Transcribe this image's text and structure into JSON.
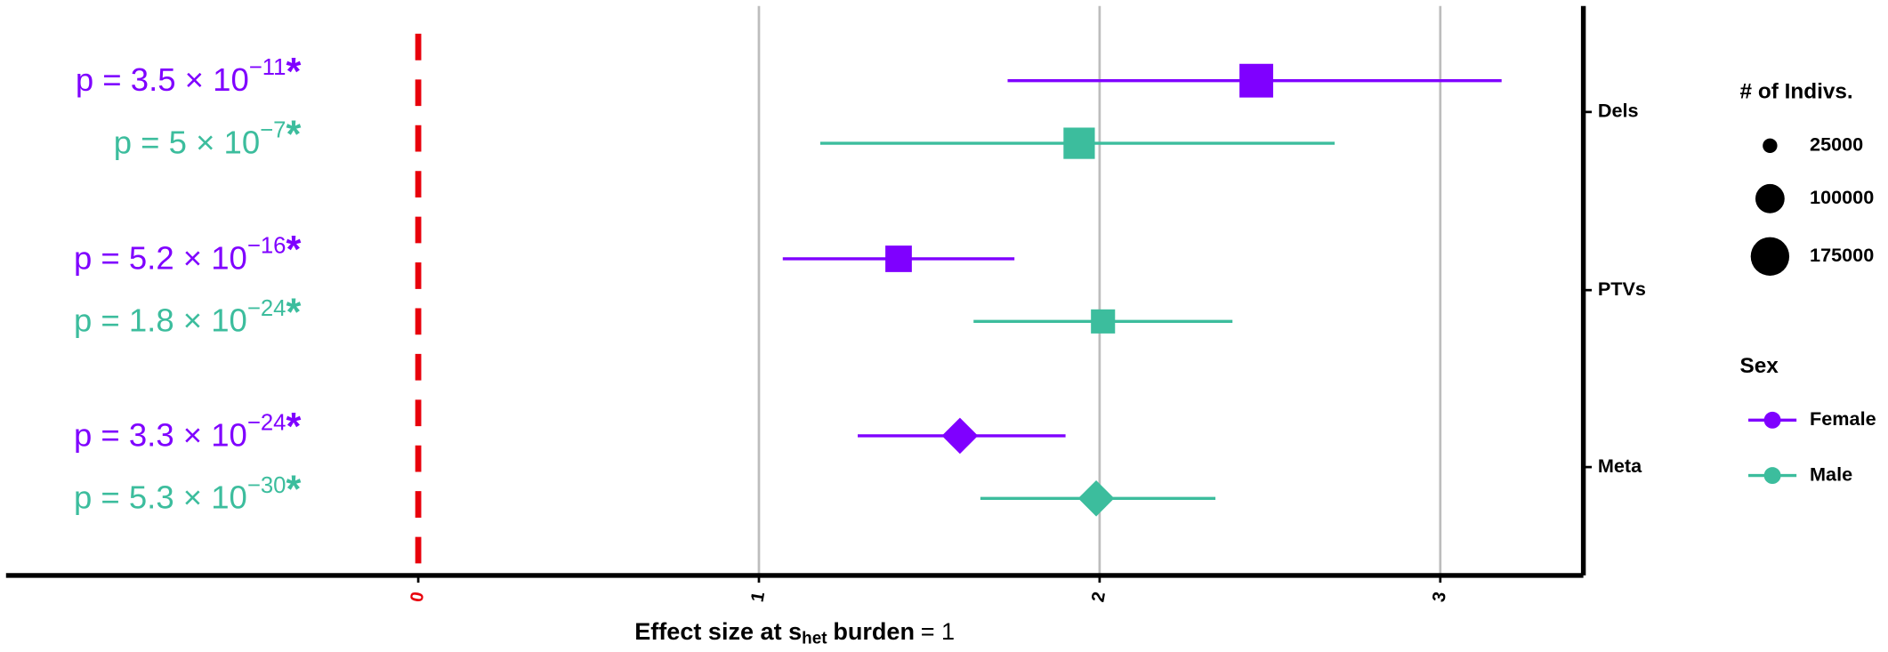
{
  "chart_data": {
    "type": "forest",
    "categories": [
      "Dels",
      "PTVs",
      "Meta"
    ],
    "shapes": [
      "square",
      "square",
      "diamond"
    ],
    "xlim": [
      -1.21,
      3.42
    ],
    "xticks": [
      0,
      1,
      2,
      3
    ],
    "grid": true,
    "reference_line": 0,
    "reference_color": "#e8000b",
    "xlabel": [
      {
        "text": "Effect size at s",
        "bold": true
      },
      {
        "text": "het",
        "bold": true,
        "sub": true
      },
      {
        "text": "burden",
        "bold": true
      },
      {
        "text": "= 1",
        "bold": false
      }
    ],
    "series": [
      {
        "name": "Female",
        "color": "#7f00ff",
        "values": [
          2.46,
          1.41,
          1.59
        ],
        "ci_low": [
          1.73,
          1.07,
          1.29
        ],
        "ci_high": [
          3.18,
          1.75,
          1.9
        ],
        "sizes": [
          170000,
          105000,
          null
        ],
        "p_labels": [
          {
            "base": "p = 3.5 × 10",
            "exp": "−11",
            "mark": "*"
          },
          {
            "base": "p = 5.2 × 10",
            "exp": "−16",
            "mark": "*"
          },
          {
            "base": "p = 3.3 × 10",
            "exp": "−24",
            "mark": "*"
          }
        ]
      },
      {
        "name": "Male",
        "color": "#3cbd9d",
        "values": [
          1.94,
          2.01,
          1.99
        ],
        "ci_low": [
          1.18,
          1.63,
          1.65
        ],
        "ci_high": [
          2.69,
          2.39,
          2.34
        ],
        "sizes": [
          147000,
          87000,
          null
        ],
        "p_labels": [
          {
            "base": "p = 5 × 10",
            "exp": "−7",
            "mark": "*"
          },
          {
            "base": "p = 1.8 × 10",
            "exp": "−24",
            "mark": "*"
          },
          {
            "base": "p = 5.3 × 10",
            "exp": "−30",
            "mark": "*"
          }
        ]
      }
    ],
    "size_legend": {
      "title": "# of Indivs.",
      "values": [
        25000,
        100000,
        175000
      ]
    },
    "color_legend_title": "Sex"
  }
}
